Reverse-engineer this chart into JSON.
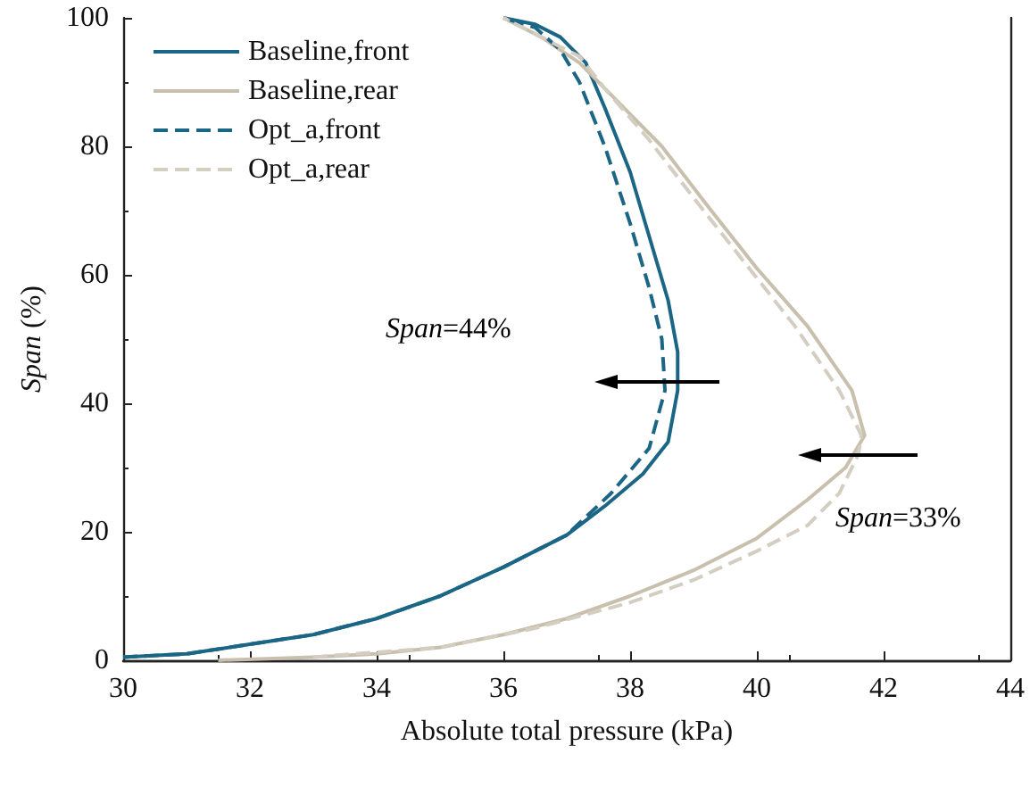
{
  "chart_data": {
    "type": "line",
    "xlabel": "Absolute total pressure (kPa)",
    "ylabel": "Span (%)",
    "xlim": [
      30,
      44
    ],
    "xticks": [
      30,
      32,
      34,
      36,
      38,
      40,
      42,
      44
    ],
    "ylim": [
      0,
      100
    ],
    "yticks": [
      0,
      20,
      40,
      60,
      80,
      100
    ],
    "grid": false,
    "legend": "top left",
    "marker": "none",
    "annotations": [
      "Span=44%",
      "Span=33%"
    ],
    "series": [
      {
        "name": "Baseline,front",
        "color": "#1b6585",
        "line_style": "solid",
        "x": [
          30,
          31,
          32,
          33,
          34,
          35,
          36,
          37,
          37.6,
          38.2,
          38.6,
          38.75,
          38.75,
          38.6,
          38.3,
          38.0,
          37.6,
          37.3,
          36.9,
          36.5,
          36
        ],
        "values": [
          0.5,
          1,
          2.5,
          4,
          6.5,
          10,
          14.5,
          19.5,
          24,
          29,
          34,
          42,
          48,
          56,
          66,
          76,
          86,
          93,
          97,
          99,
          100
        ]
      },
      {
        "name": "Baseline,rear",
        "color": "#c8bfad",
        "line_style": "solid",
        "x": [
          31.5,
          33,
          34,
          35,
          36,
          37,
          38,
          39,
          40,
          40.8,
          41.4,
          41.7,
          41.5,
          40.8,
          40,
          39.2,
          38.5,
          37.6,
          37.2,
          36.6,
          36
        ],
        "values": [
          0,
          0.5,
          1,
          2,
          4,
          6.5,
          10,
          14,
          19,
          25,
          30,
          35,
          42,
          52,
          61,
          71,
          80,
          89,
          93,
          97,
          100
        ]
      },
      {
        "name": "Opt_a,front",
        "color": "#1b6585",
        "line_style": "dashed",
        "x": [
          30,
          31,
          32,
          33,
          34,
          35,
          36,
          37,
          37.7,
          38.3,
          38.55,
          38.5,
          38.3,
          38.0,
          37.6,
          37.2,
          36.9,
          36.5,
          36
        ],
        "values": [
          0.5,
          1,
          2.5,
          4,
          6.5,
          10,
          14.5,
          19.5,
          26,
          33,
          42,
          50,
          58,
          68,
          80,
          90,
          95,
          98.5,
          100
        ]
      },
      {
        "name": "Opt_a,rear",
        "color": "#d4cdc1",
        "line_style": "dashed",
        "x": [
          33,
          35,
          36.5,
          38,
          39,
          40,
          40.8,
          41.3,
          41.6,
          41.65,
          41.3,
          40.6,
          39.8,
          39,
          38.3,
          37.6,
          37.2,
          36.6,
          36
        ],
        "values": [
          0.5,
          2,
          5,
          9,
          12.5,
          17,
          21,
          26,
          32,
          35,
          42,
          52,
          62,
          72,
          81,
          89,
          94,
          97,
          100
        ]
      }
    ]
  }
}
